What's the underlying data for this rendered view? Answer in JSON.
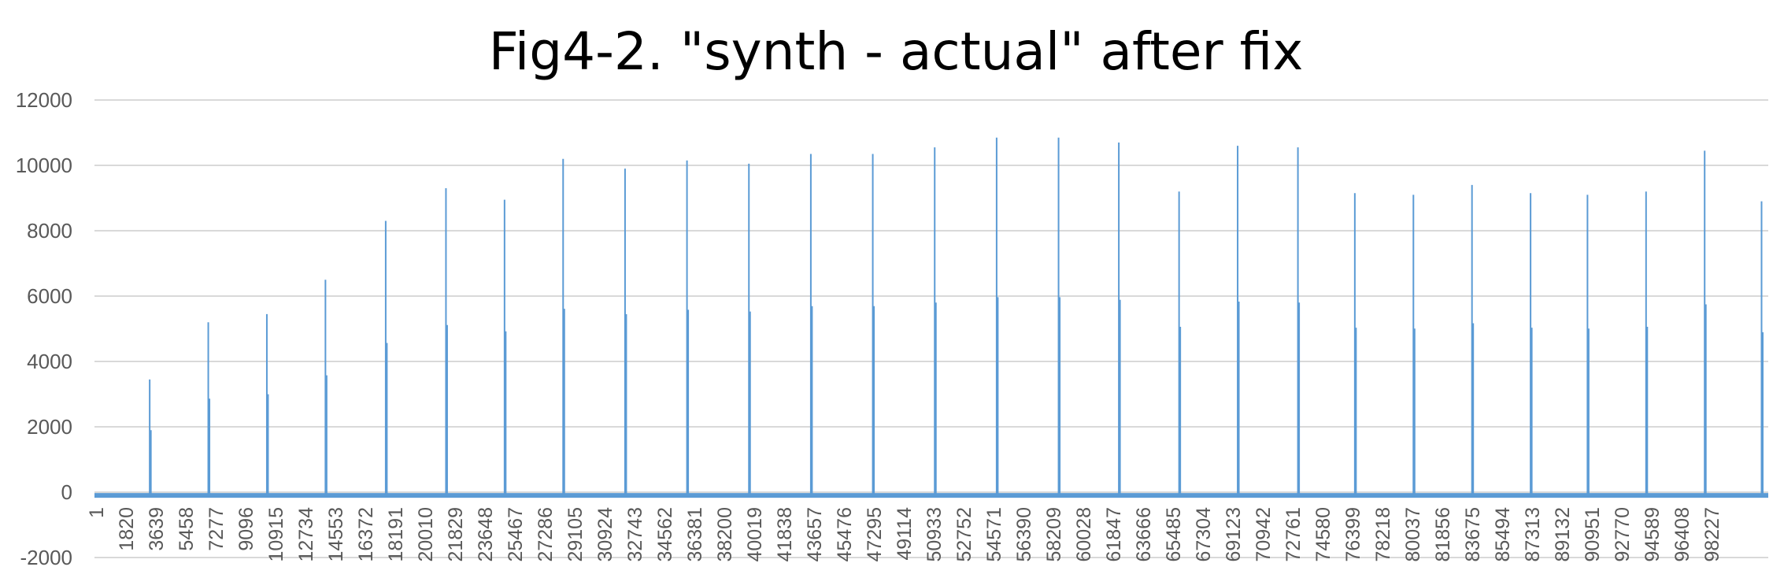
{
  "chart_data": {
    "type": "line",
    "title": "Fig4-2. \"synth - actual\" after fix",
    "xlabel": "",
    "ylabel": "",
    "ylim": [
      -2000,
      12000
    ],
    "yticks": [
      12000,
      10000,
      8000,
      6000,
      4000,
      2000,
      0,
      -2000
    ],
    "xlim": [
      1,
      100000
    ],
    "xtick_labels": [
      "1",
      "1820",
      "3639",
      "5458",
      "7277",
      "9096",
      "10915",
      "12734",
      "14553",
      "16372",
      "18191",
      "20010",
      "21829",
      "23648",
      "25467",
      "27286",
      "29105",
      "30924",
      "32743",
      "34562",
      "36381",
      "38200",
      "40019",
      "41838",
      "43657",
      "45476",
      "47295",
      "49114",
      "50933",
      "52752",
      "54571",
      "56390",
      "58209",
      "60028",
      "61847",
      "63666",
      "65485",
      "67304",
      "69123",
      "70942",
      "72761",
      "74580",
      "76399",
      "78218",
      "80037",
      "81856",
      "83675",
      "85494",
      "87313",
      "89132",
      "90951",
      "92770",
      "94589",
      "96408",
      "98227"
    ],
    "grid": true,
    "legend": "none",
    "color": "#5b9bd5",
    "baseline_value": -100,
    "series": [
      {
        "x": [
          3300,
          6800,
          10300,
          13800,
          17400,
          21000,
          24500,
          28000,
          31700,
          35400,
          39100,
          42800,
          46500,
          50200,
          53900,
          57600,
          61200,
          64800,
          68300,
          71900,
          75300,
          78800,
          82300,
          85800,
          89200,
          92700,
          96200,
          99600
        ],
        "y": [
          3450,
          5200,
          5450,
          6500,
          8300,
          9300,
          8950,
          10200,
          9900,
          10150,
          10050,
          10350,
          10350,
          10550,
          10850,
          10850,
          10700,
          9200,
          10600,
          10550,
          9150,
          9100,
          9400,
          9150,
          9100,
          9200,
          10450,
          8900
        ]
      }
    ]
  }
}
